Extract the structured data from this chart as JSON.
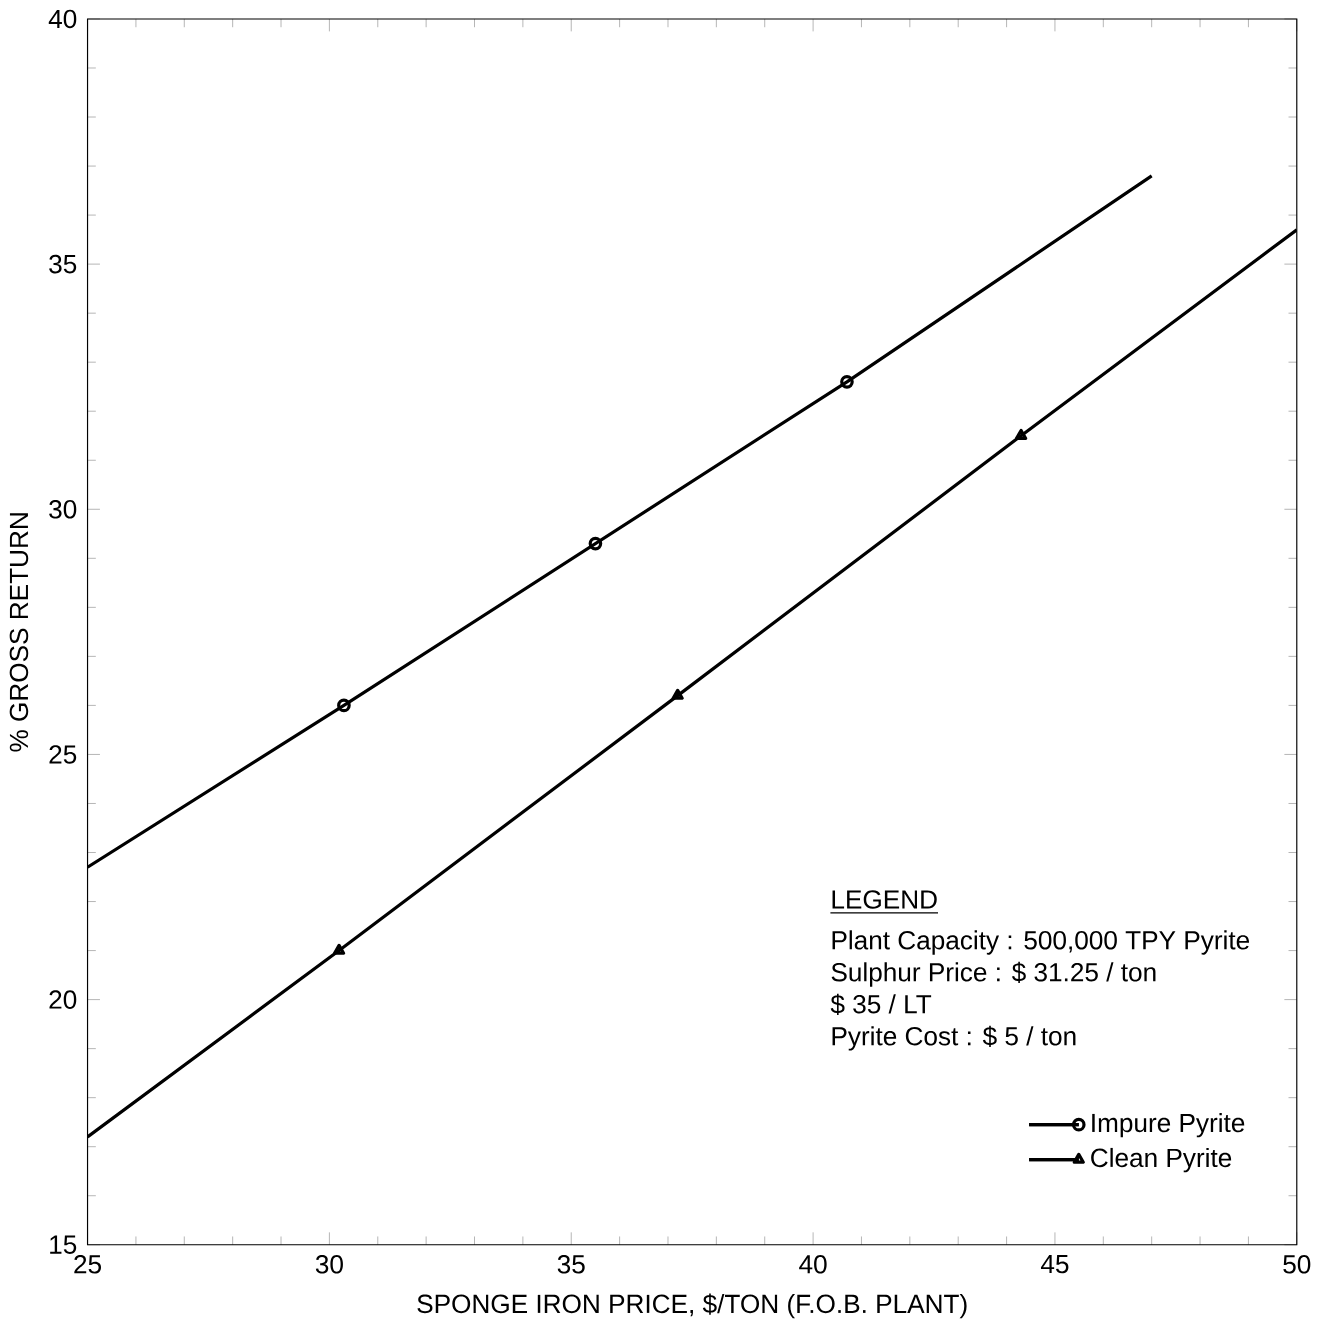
{
  "chart_data": {
    "type": "line",
    "xlabel": "SPONGE IRON PRICE, $/TON (F.O.B. PLANT)",
    "ylabel": "% GROSS RETURN",
    "xlim": [
      25,
      50
    ],
    "ylim": [
      15,
      40
    ],
    "xticks": [
      25,
      30,
      35,
      40,
      45,
      50
    ],
    "yticks": [
      15,
      20,
      25,
      30,
      35,
      40
    ],
    "legend": "bottom right",
    "legend_title": "LEGEND",
    "grid": false,
    "annotations": [
      "Plant Capacity : 500,000 TPY Pyrite",
      "Sulphur Price : $ 31.25 / ton",
      "$ 35 / LT",
      "Pyrite Cost : $ 5 / ton"
    ],
    "series": [
      {
        "name": "Impure Pyrite",
        "color": "#000000",
        "marker": "circle",
        "x": [
          25,
          30.3,
          35.5,
          40.7,
          47
        ],
        "values": [
          22.7,
          26.0,
          29.3,
          32.6,
          36.8
        ]
      },
      {
        "name": "Clean Pyrite",
        "color": "#000000",
        "marker": "triangle",
        "x": [
          25,
          30.2,
          37.2,
          44.3,
          50
        ],
        "values": [
          17.2,
          21.0,
          26.2,
          31.5,
          35.7
        ]
      }
    ]
  }
}
